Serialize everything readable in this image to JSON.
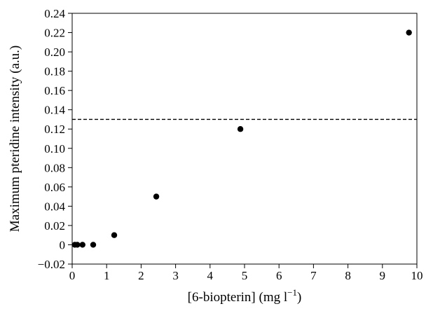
{
  "chart_data": {
    "type": "scatter",
    "title": "",
    "xlabel": {
      "main": "[6-biopterin] (mg l",
      "superscript": "−1",
      "close": ")"
    },
    "ylabel": "Maximum pteridine intensity (a.u.)",
    "xlim": [
      0,
      10
    ],
    "ylim": [
      -0.02,
      0.24
    ],
    "grid": false,
    "legend": "none",
    "x_ticks": [
      0,
      1,
      2,
      3,
      4,
      5,
      6,
      7,
      8,
      9,
      10
    ],
    "x_tick_labels": [
      "0",
      "1",
      "2",
      "3",
      "4",
      "5",
      "6",
      "7",
      "8",
      "9",
      "10"
    ],
    "y_ticks": [
      -0.02,
      0,
      0.02,
      0.04,
      0.06,
      0.08,
      0.1,
      0.12,
      0.14,
      0.16,
      0.18,
      0.2,
      0.22,
      0.24
    ],
    "y_tick_labels": [
      "−0.02",
      "0",
      "0.02",
      "0.04",
      "0.06",
      "0.08",
      "0.10",
      "0.12",
      "0.14",
      "0.16",
      "0.18",
      "0.20",
      "0.22",
      "0.24"
    ],
    "series": [
      {
        "x": [
          0.076,
          0.15,
          0.3,
          0.61,
          1.22,
          2.44,
          4.88,
          9.77
        ],
        "y": [
          0,
          0,
          0,
          0,
          0.01,
          0.05,
          0.12,
          0.22
        ],
        "marker": "filled-circle",
        "color": "#000000"
      }
    ],
    "reference_lines": [
      {
        "orientation": "horizontal",
        "y": 0.13,
        "style": "dashed",
        "color": "#000000"
      }
    ]
  }
}
